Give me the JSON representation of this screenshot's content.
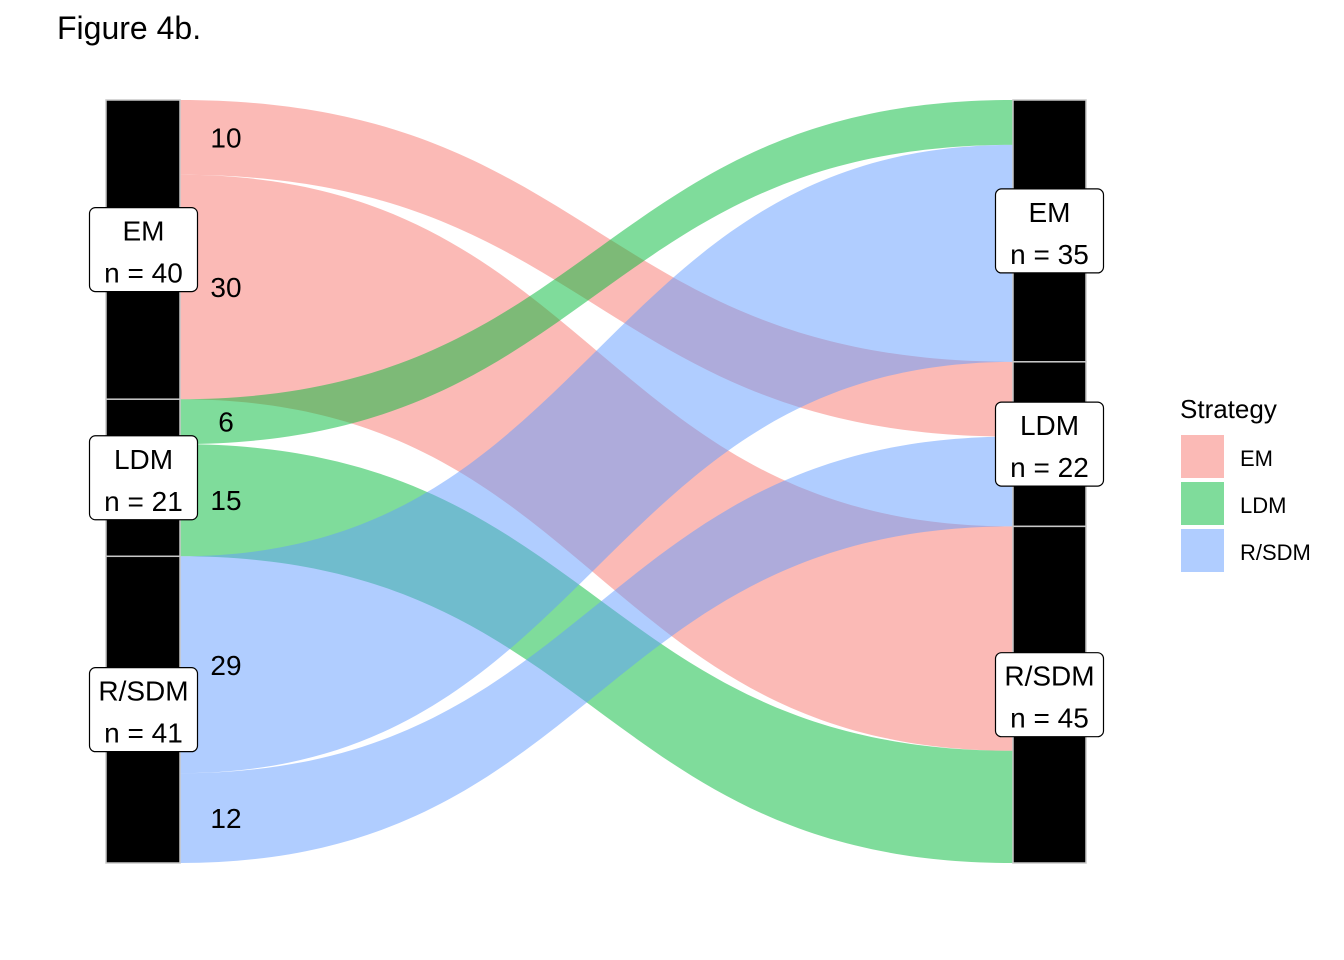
{
  "title": "Figure 4b.",
  "chart_data": {
    "type": "alluvial",
    "strata_left": [
      {
        "name": "EM",
        "n_label": "n = 40",
        "n": 40
      },
      {
        "name": "LDM",
        "n_label": "n = 21",
        "n": 21
      },
      {
        "name": "R/SDM",
        "n_label": "n = 41",
        "n": 41
      }
    ],
    "strata_right": [
      {
        "name": "EM",
        "n_label": "n = 35",
        "n": 35
      },
      {
        "name": "LDM",
        "n_label": "n = 22",
        "n": 22
      },
      {
        "name": "R/SDM",
        "n_label": "n = 45",
        "n": 45
      }
    ],
    "flows": [
      {
        "from": "EM",
        "to": "LDM",
        "value": 10,
        "fill": "EM"
      },
      {
        "from": "EM",
        "to": "R/SDM",
        "value": 30,
        "fill": "EM"
      },
      {
        "from": "LDM",
        "to": "EM",
        "value": 6,
        "fill": "LDM"
      },
      {
        "from": "LDM",
        "to": "R/SDM",
        "value": 15,
        "fill": "LDM"
      },
      {
        "from": "R/SDM",
        "to": "EM",
        "value": 29,
        "fill": "R/SDM"
      },
      {
        "from": "R/SDM",
        "to": "LDM",
        "value": 12,
        "fill": "R/SDM"
      }
    ],
    "flow_labels": [
      "10",
      "30",
      "6",
      "15",
      "29",
      "12"
    ],
    "legend": {
      "title": "Strategy",
      "placement": "right",
      "items": [
        {
          "label": "EM",
          "color": "#F8766D"
        },
        {
          "label": "LDM",
          "color": "#00BA38"
        },
        {
          "label": "R/SDM",
          "color": "#619CFF"
        }
      ]
    },
    "colors": {
      "EM": "#F8766D",
      "LDM": "#00BA38",
      "R/SDM": "#619CFF",
      "stratum": "#000000"
    }
  }
}
